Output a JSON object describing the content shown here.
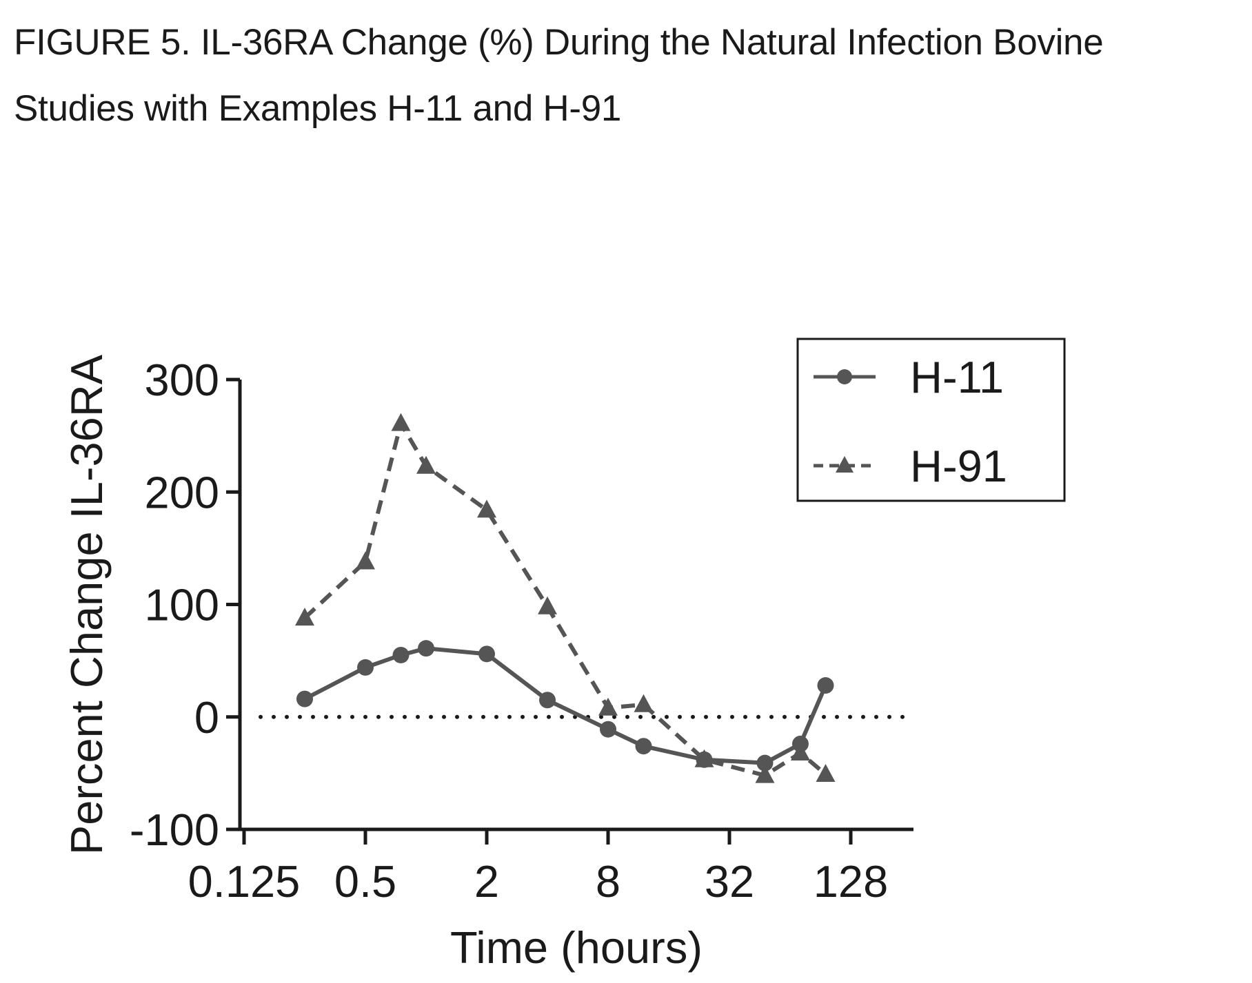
{
  "figure": {
    "title_line1": "FIGURE 5.  IL-36RA Change (%) During the Natural Infection Bovine",
    "title_line2": "Studies with Examples H-11 and H-91"
  },
  "chart_data": {
    "type": "line",
    "xlabel": "Time (hours)",
    "ylabel": "Percent Change IL-36RA",
    "x_scale": "log2",
    "xlim": [
      0.125,
      256
    ],
    "ylim": [
      -100,
      300
    ],
    "x_ticks": [
      0.125,
      0.5,
      2,
      8,
      32,
      128
    ],
    "x_tick_labels": [
      "0.125",
      "0.5",
      "2",
      "8",
      "32",
      "128"
    ],
    "y_ticks": [
      -100,
      0,
      100,
      200,
      300
    ],
    "y_tick_labels": [
      "-100",
      "0",
      "100",
      "200",
      "300"
    ],
    "reference_line": {
      "y": 0,
      "style": "dotted"
    },
    "legend_position": "top-right",
    "grid": false,
    "series": [
      {
        "name": "H-11",
        "marker": "circle",
        "line_style": "solid",
        "color": "#555555",
        "x": [
          0.25,
          0.5,
          0.75,
          1,
          2,
          4,
          8,
          12,
          24,
          48,
          72,
          96
        ],
        "y": [
          16,
          44,
          55,
          61,
          56,
          15,
          -11,
          -26,
          -38,
          -41,
          -24,
          28
        ]
      },
      {
        "name": "H-91",
        "marker": "triangle",
        "line_style": "dashed",
        "color": "#555555",
        "x": [
          0.25,
          0.5,
          0.75,
          1,
          2,
          4,
          8,
          12,
          24,
          48,
          72,
          96
        ],
        "y": [
          88,
          138,
          261,
          223,
          184,
          98,
          8,
          11,
          -38,
          -52,
          -32,
          -51
        ]
      }
    ]
  }
}
